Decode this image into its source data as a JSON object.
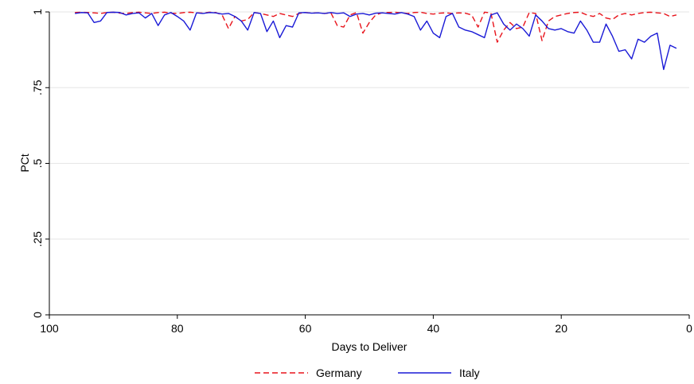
{
  "chart_data": {
    "type": "line",
    "xlabel": "Days to Deliver",
    "ylabel": "PCt",
    "xlim": [
      100,
      0
    ],
    "ylim": [
      0,
      1
    ],
    "x_reversed": true,
    "x_ticks": [
      100,
      80,
      60,
      40,
      20,
      0
    ],
    "y_ticks": [
      0,
      0.25,
      0.5,
      0.75,
      1
    ],
    "x_tick_labels": [
      "100",
      "80",
      "60",
      "40",
      "20",
      "0"
    ],
    "y_tick_labels": [
      "0",
      ".25",
      ".5",
      ".75",
      "1"
    ],
    "grid": "horizontal",
    "legend_position": "bottom",
    "x": [
      96,
      95,
      94,
      93,
      92,
      91,
      90,
      89,
      88,
      87,
      86,
      85,
      84,
      83,
      82,
      81,
      80,
      79,
      78,
      77,
      76,
      75,
      74,
      73,
      72,
      71,
      70,
      69,
      68,
      67,
      66,
      65,
      64,
      63,
      62,
      61,
      60,
      59,
      58,
      57,
      56,
      55,
      54,
      53,
      52,
      51,
      50,
      49,
      48,
      47,
      46,
      45,
      44,
      43,
      42,
      41,
      40,
      39,
      38,
      37,
      36,
      35,
      34,
      33,
      32,
      31,
      30,
      29,
      28,
      27,
      26,
      25,
      24,
      23,
      22,
      21,
      20,
      19,
      18,
      17,
      16,
      15,
      14,
      13,
      12,
      11,
      10,
      9,
      8,
      7,
      6,
      5,
      4,
      3,
      2
    ],
    "series": [
      {
        "name": "Germany",
        "color": "#e8141c",
        "dash": "dashed",
        "values": [
          0.998,
          0.999,
          0.998,
          0.997,
          0.995,
          0.998,
          0.999,
          0.996,
          0.995,
          0.998,
          0.999,
          0.997,
          0.995,
          0.998,
          0.999,
          0.996,
          0.995,
          0.998,
          0.999,
          0.997,
          0.996,
          0.999,
          0.998,
          0.99,
          0.945,
          0.985,
          0.97,
          0.975,
          0.998,
          0.995,
          0.99,
          0.985,
          0.995,
          0.99,
          0.985,
          0.995,
          0.998,
          0.996,
          0.997,
          0.995,
          0.997,
          0.955,
          0.95,
          0.99,
          0.998,
          0.93,
          0.965,
          0.99,
          0.997,
          0.998,
          0.999,
          0.997,
          0.995,
          0.998,
          0.999,
          0.995,
          0.993,
          0.996,
          0.997,
          0.995,
          0.997,
          0.996,
          0.99,
          0.95,
          0.999,
          0.997,
          0.9,
          0.94,
          0.965,
          0.945,
          0.95,
          0.998,
          0.995,
          0.905,
          0.97,
          0.985,
          0.99,
          0.995,
          0.998,
          0.999,
          0.99,
          0.985,
          0.995,
          0.98,
          0.975,
          0.99,
          0.995,
          0.99,
          0.995,
          0.998,
          0.999,
          0.997,
          0.995,
          0.985,
          0.99
        ]
      },
      {
        "name": "Italy",
        "color": "#1a1ad6",
        "dash": "solid",
        "values": [
          0.995,
          0.998,
          0.997,
          0.965,
          0.97,
          0.998,
          0.999,
          0.998,
          0.99,
          0.995,
          0.997,
          0.98,
          0.995,
          0.955,
          0.99,
          0.998,
          0.985,
          0.97,
          0.94,
          0.997,
          0.995,
          0.998,
          0.997,
          0.993,
          0.995,
          0.985,
          0.97,
          0.94,
          0.998,
          0.995,
          0.935,
          0.97,
          0.915,
          0.955,
          0.95,
          0.997,
          0.998,
          0.996,
          0.997,
          0.995,
          0.998,
          0.995,
          0.997,
          0.985,
          0.993,
          0.995,
          0.99,
          0.996,
          0.997,
          0.995,
          0.993,
          0.998,
          0.993,
          0.985,
          0.94,
          0.97,
          0.93,
          0.915,
          0.985,
          0.995,
          0.95,
          0.94,
          0.935,
          0.925,
          0.915,
          0.99,
          0.997,
          0.96,
          0.94,
          0.96,
          0.945,
          0.92,
          0.99,
          0.97,
          0.945,
          0.94,
          0.945,
          0.935,
          0.93,
          0.97,
          0.94,
          0.9,
          0.9,
          0.96,
          0.92,
          0.87,
          0.875,
          0.845,
          0.91,
          0.9,
          0.92,
          0.93,
          0.81,
          0.89,
          0.88
        ]
      }
    ]
  }
}
